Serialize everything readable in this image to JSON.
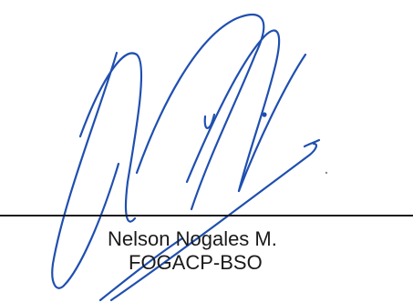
{
  "signature": {
    "ink_color": "#1f4fb0",
    "line_color": "#1a1a1a",
    "text_color": "#1a1a1a",
    "name": "Nelson Nogales M.",
    "organization": "FOGACP-BSO"
  }
}
